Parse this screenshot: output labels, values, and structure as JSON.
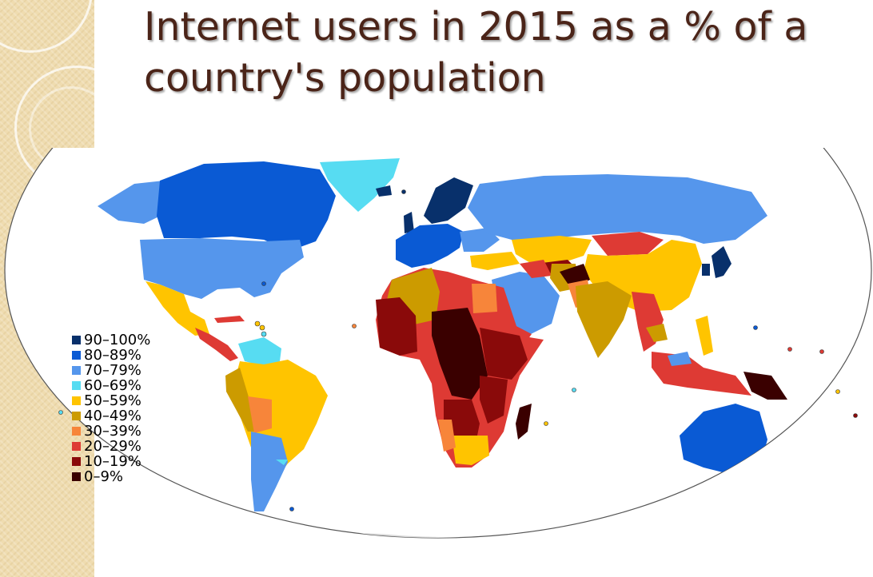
{
  "title": "Internet users in 2015 as a % of a country's population",
  "colors": {
    "title": "#4b2418",
    "ocean": "#ffffff",
    "no_data": "#d9d9d9",
    "background_strip": "#efdcb0"
  },
  "legend": [
    {
      "label": "90–100%",
      "color": "#08306b"
    },
    {
      "label": "80–89%",
      "color": "#0a5ad4"
    },
    {
      "label": "70–79%",
      "color": "#5596ec"
    },
    {
      "label": "60–69%",
      "color": "#57dcf2"
    },
    {
      "label": "50–59%",
      "color": "#ffc400"
    },
    {
      "label": "40–49%",
      "color": "#cc9b00"
    },
    {
      "label": "30–39%",
      "color": "#f7853a"
    },
    {
      "label": "20–29%",
      "color": "#de3a34"
    },
    {
      "label": "10–19%",
      "color": "#8a0a0a"
    },
    {
      "label": "0–9%",
      "color": "#3a0000"
    }
  ]
}
